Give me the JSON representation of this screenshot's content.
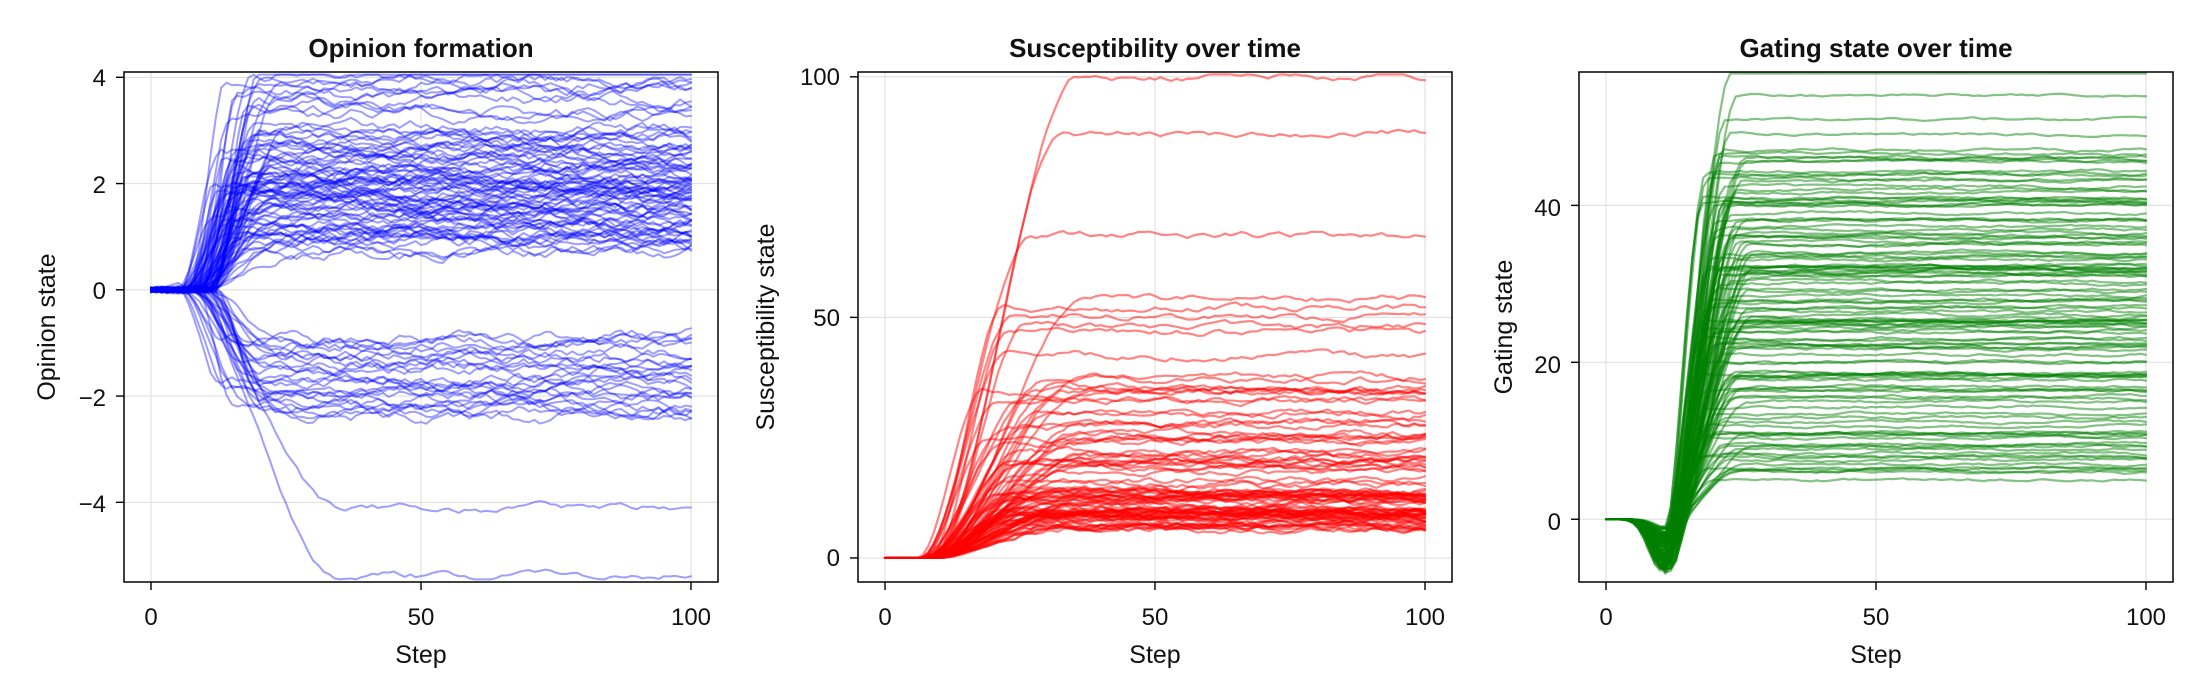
{
  "panels": [
    {
      "title": "Opinion formation",
      "xlabel": "Step",
      "ylabel": "Opinion state",
      "color": "#0000ff",
      "xticks": [
        "0",
        "50",
        "100"
      ],
      "yticks": [
        "−4",
        "−2",
        "0",
        "2",
        "4"
      ]
    },
    {
      "title": "Susceptibility over time",
      "xlabel": "Step",
      "ylabel": "Susceptibility state",
      "color": "#ff0000",
      "xticks": [
        "0",
        "50",
        "100"
      ],
      "yticks": [
        "0",
        "50",
        "100"
      ]
    },
    {
      "title": "Gating state over time",
      "xlabel": "Step",
      "ylabel": "Gating state",
      "color": "#008000",
      "xticks": [
        "0",
        "50",
        "100"
      ],
      "yticks": [
        "0",
        "20",
        "40"
      ]
    }
  ],
  "chart_data": [
    {
      "type": "line",
      "title": "Opinion formation",
      "xlabel": "Step",
      "ylabel": "Opinion state",
      "xlim": [
        -5,
        105
      ],
      "ylim": [
        -5.5,
        4.1
      ],
      "x_ticks": [
        0,
        50,
        100
      ],
      "y_ticks": [
        -4,
        -2,
        0,
        2,
        4
      ],
      "grid": true,
      "color": "#0000ff",
      "x_range": [
        0,
        100
      ],
      "start_value": 0,
      "transition_steps": [
        5,
        25
      ],
      "final_value_groups": {
        "upper_cluster": "about 0.8 to 4.0 (densest near 1 to 2)",
        "middle_cluster": "about -2.3 to -1.0",
        "lower_lines": [
          -4.1,
          -5.4
        ]
      },
      "stable_final_values": [
        4.0,
        3.9,
        3.6,
        3.4,
        3.1,
        2.9,
        2.7,
        2.5,
        2.3,
        2.1,
        2.0,
        1.9,
        1.8,
        1.7,
        1.6,
        1.5,
        1.4,
        1.3,
        1.2,
        1.1,
        1.0,
        0.9,
        0.8,
        -1.0,
        -1.2,
        -1.3,
        -1.5,
        -1.6,
        -1.8,
        -2.0,
        -2.3,
        -4.1,
        -5.4
      ]
    },
    {
      "type": "line",
      "title": "Susceptibility over time",
      "xlabel": "Step",
      "ylabel": "Susceptibility state",
      "xlim": [
        -5,
        105
      ],
      "ylim": [
        -5,
        101
      ],
      "x_ticks": [
        0,
        50,
        100
      ],
      "y_ticks": [
        0,
        50,
        100
      ],
      "grid": true,
      "color": "#ff0000",
      "x_range": [
        0,
        100
      ],
      "start_value": 0,
      "rise_starts_near_step": 7,
      "plateau_from_steps": [
        20,
        35
      ],
      "stable_final_values": [
        100,
        88,
        67,
        54,
        52,
        50,
        48,
        47,
        42,
        37,
        35,
        33,
        30,
        28,
        26,
        24,
        22,
        20,
        18,
        16,
        14,
        12,
        10,
        8,
        6
      ]
    },
    {
      "type": "line",
      "title": "Gating state over time",
      "xlabel": "Step",
      "ylabel": "Gating state",
      "xlim": [
        -5,
        105
      ],
      "ylim": [
        -8,
        57
      ],
      "x_ticks": [
        0,
        50,
        100
      ],
      "y_ticks": [
        0,
        20,
        40
      ],
      "grid": true,
      "color": "#008000",
      "x_range": [
        0,
        100
      ],
      "start_value": 0,
      "dip_minimum_range": [
        -7,
        -1
      ],
      "plateau_from_steps": [
        20,
        30
      ],
      "stable_final_values": [
        57,
        54,
        51,
        49,
        47,
        44,
        42,
        40,
        37,
        36,
        35,
        34,
        33,
        32,
        31,
        30,
        28,
        27,
        26,
        25,
        24,
        23,
        22,
        21,
        20,
        18,
        17,
        15,
        13,
        11,
        9,
        7,
        6,
        5
      ]
    }
  ]
}
